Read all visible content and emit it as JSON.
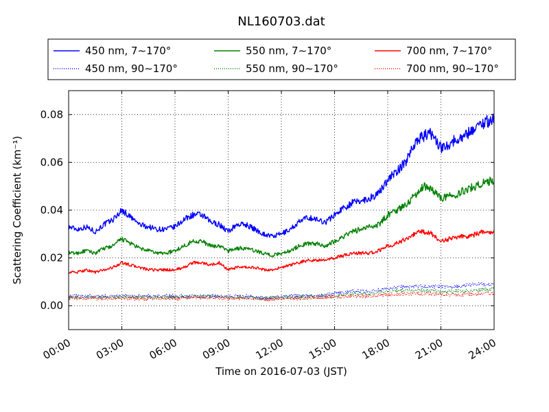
{
  "chart_data": {
    "type": "line",
    "title": "NL160703.dat",
    "xlabel": "Time on 2016-07-03 (JST)",
    "ylabel": "Scattering Coefficient (km⁻¹)",
    "x_unit": "hour",
    "xlim": [
      0,
      24
    ],
    "ylim": [
      -0.01,
      0.09
    ],
    "x_ticks": [
      0,
      3,
      6,
      9,
      12,
      15,
      18,
      21,
      24
    ],
    "x_tick_labels": [
      "00:00",
      "03:00",
      "06:00",
      "09:00",
      "12:00",
      "15:00",
      "18:00",
      "21:00",
      "24:00"
    ],
    "y_ticks": [
      0.0,
      0.02,
      0.04,
      0.06,
      0.08
    ],
    "y_tick_labels": [
      "0.00",
      "0.02",
      "0.04",
      "0.06",
      "0.08"
    ],
    "grid": true,
    "legend_position": "top",
    "series": [
      {
        "name": "450 nm, 7∼170°",
        "color": "#0000ff",
        "style": "solid",
        "x": [
          0,
          0.5,
          1,
          1.5,
          2,
          2.5,
          3,
          3.5,
          4,
          4.5,
          5,
          5.5,
          6,
          6.5,
          7,
          7.5,
          8,
          8.5,
          9,
          9.5,
          10,
          10.5,
          11,
          11.5,
          12,
          12.5,
          13,
          13.5,
          14,
          14.5,
          15,
          15.5,
          16,
          16.5,
          17,
          17.5,
          18,
          18.5,
          19,
          19.5,
          20,
          20.5,
          21,
          21.5,
          22,
          22.5,
          23,
          23.5,
          24
        ],
        "y": [
          0.033,
          0.032,
          0.033,
          0.031,
          0.034,
          0.036,
          0.04,
          0.037,
          0.034,
          0.033,
          0.032,
          0.032,
          0.033,
          0.036,
          0.038,
          0.038,
          0.035,
          0.034,
          0.031,
          0.034,
          0.034,
          0.032,
          0.03,
          0.029,
          0.03,
          0.032,
          0.035,
          0.037,
          0.036,
          0.035,
          0.038,
          0.041,
          0.043,
          0.044,
          0.045,
          0.047,
          0.053,
          0.056,
          0.06,
          0.068,
          0.071,
          0.072,
          0.066,
          0.068,
          0.07,
          0.072,
          0.075,
          0.077,
          0.078
        ]
      },
      {
        "name": "550 nm, 7∼170°",
        "color": "#008000",
        "style": "solid",
        "x": [
          0,
          0.5,
          1,
          1.5,
          2,
          2.5,
          3,
          3.5,
          4,
          4.5,
          5,
          5.5,
          6,
          6.5,
          7,
          7.5,
          8,
          8.5,
          9,
          9.5,
          10,
          10.5,
          11,
          11.5,
          12,
          12.5,
          13,
          13.5,
          14,
          14.5,
          15,
          15.5,
          16,
          16.5,
          17,
          17.5,
          18,
          18.5,
          19,
          19.5,
          20,
          20.5,
          21,
          21.5,
          22,
          22.5,
          23,
          23.5,
          24
        ],
        "y": [
          0.022,
          0.022,
          0.023,
          0.022,
          0.024,
          0.025,
          0.028,
          0.026,
          0.024,
          0.023,
          0.022,
          0.022,
          0.023,
          0.025,
          0.027,
          0.027,
          0.025,
          0.025,
          0.023,
          0.024,
          0.024,
          0.023,
          0.022,
          0.021,
          0.022,
          0.023,
          0.025,
          0.026,
          0.026,
          0.025,
          0.027,
          0.029,
          0.031,
          0.032,
          0.033,
          0.034,
          0.038,
          0.04,
          0.042,
          0.046,
          0.05,
          0.049,
          0.045,
          0.046,
          0.047,
          0.049,
          0.05,
          0.052,
          0.052
        ]
      },
      {
        "name": "700 nm, 7∼170°",
        "color": "#ff0000",
        "style": "solid",
        "x": [
          0,
          0.5,
          1,
          1.5,
          2,
          2.5,
          3,
          3.5,
          4,
          4.5,
          5,
          5.5,
          6,
          6.5,
          7,
          7.5,
          8,
          8.5,
          9,
          9.5,
          10,
          10.5,
          11,
          11.5,
          12,
          12.5,
          13,
          13.5,
          14,
          14.5,
          15,
          15.5,
          16,
          16.5,
          17,
          17.5,
          18,
          18.5,
          19,
          19.5,
          20,
          20.5,
          21,
          21.5,
          22,
          22.5,
          23,
          23.5,
          24
        ],
        "y": [
          0.014,
          0.014,
          0.015,
          0.014,
          0.015,
          0.016,
          0.018,
          0.017,
          0.016,
          0.015,
          0.015,
          0.015,
          0.015,
          0.016,
          0.018,
          0.018,
          0.017,
          0.018,
          0.015,
          0.016,
          0.016,
          0.016,
          0.015,
          0.015,
          0.016,
          0.017,
          0.018,
          0.019,
          0.019,
          0.019,
          0.02,
          0.021,
          0.022,
          0.022,
          0.022,
          0.023,
          0.025,
          0.026,
          0.028,
          0.03,
          0.031,
          0.03,
          0.027,
          0.028,
          0.029,
          0.029,
          0.03,
          0.031,
          0.031
        ]
      },
      {
        "name": "450 nm, 90∼170°",
        "color": "#0000ff",
        "style": "dotted",
        "x": [
          0,
          1,
          2,
          3,
          4,
          5,
          6,
          7,
          8,
          9,
          10,
          11,
          12,
          13,
          14,
          15,
          16,
          17,
          18,
          19,
          20,
          21,
          22,
          23,
          24
        ],
        "y": [
          0.004,
          0.004,
          0.004,
          0.004,
          0.004,
          0.004,
          0.004,
          0.004,
          0.004,
          0.004,
          0.004,
          0.003,
          0.004,
          0.004,
          0.004,
          0.005,
          0.006,
          0.006,
          0.007,
          0.008,
          0.008,
          0.008,
          0.008,
          0.009,
          0.009
        ]
      },
      {
        "name": "550 nm, 90∼170°",
        "color": "#008000",
        "style": "dotted",
        "x": [
          0,
          1,
          2,
          3,
          4,
          5,
          6,
          7,
          8,
          9,
          10,
          11,
          12,
          13,
          14,
          15,
          16,
          17,
          18,
          19,
          20,
          21,
          22,
          23,
          24
        ],
        "y": [
          0.0035,
          0.0035,
          0.0035,
          0.0035,
          0.0035,
          0.0035,
          0.0035,
          0.004,
          0.004,
          0.0035,
          0.0035,
          0.003,
          0.0035,
          0.0035,
          0.004,
          0.004,
          0.005,
          0.005,
          0.006,
          0.0065,
          0.0065,
          0.006,
          0.006,
          0.0065,
          0.007
        ]
      },
      {
        "name": "700 nm, 90∼170°",
        "color": "#ff0000",
        "style": "dotted",
        "x": [
          0,
          1,
          2,
          3,
          4,
          5,
          6,
          7,
          8,
          9,
          10,
          11,
          12,
          13,
          14,
          15,
          16,
          17,
          18,
          19,
          20,
          21,
          22,
          23,
          24
        ],
        "y": [
          0.003,
          0.003,
          0.003,
          0.003,
          0.003,
          0.003,
          0.003,
          0.0035,
          0.0035,
          0.003,
          0.003,
          0.0025,
          0.003,
          0.003,
          0.0035,
          0.0035,
          0.004,
          0.004,
          0.0045,
          0.005,
          0.005,
          0.0045,
          0.0045,
          0.005,
          0.005
        ]
      }
    ]
  }
}
